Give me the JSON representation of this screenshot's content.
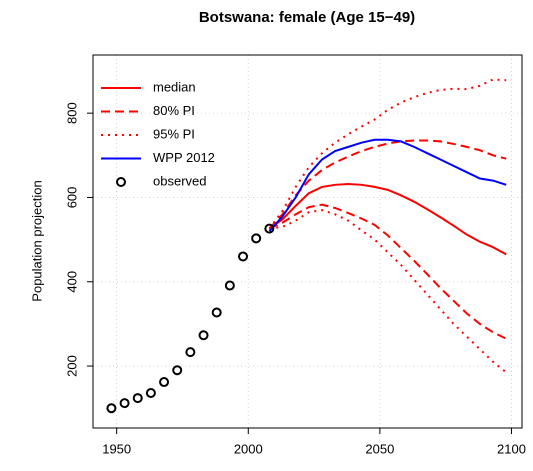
{
  "chart_data": {
    "type": "line",
    "title": "Botswana: female (Age 15−49)",
    "ylabel": "Population projection",
    "xlim": [
      1941,
      2104
    ],
    "ylim": [
      53,
      938
    ],
    "xticks": [
      1950,
      2000,
      2050,
      2100
    ],
    "yticks": [
      200,
      400,
      600,
      800
    ],
    "grid": true,
    "legend": "topleft",
    "series": [
      {
        "name": "median",
        "color": "#ff0000",
        "style": "solid",
        "x": [
          2008,
          2013,
          2018,
          2023,
          2028,
          2033,
          2038,
          2043,
          2048,
          2053,
          2058,
          2063,
          2068,
          2073,
          2078,
          2083,
          2088,
          2093,
          2098
        ],
        "values": [
          526,
          548,
          580,
          610,
          625,
          630,
          632,
          630,
          625,
          618,
          605,
          590,
          572,
          553,
          533,
          512,
          495,
          482,
          465
        ]
      },
      {
        "name": "80% PI",
        "color": "#ff0000",
        "style": "dashed",
        "x": [
          2008,
          2013,
          2018,
          2023,
          2028,
          2033,
          2038,
          2043,
          2048,
          2053,
          2058,
          2063,
          2068,
          2073,
          2078,
          2083,
          2088,
          2093,
          2098
        ],
        "values": [
          526,
          560,
          605,
          640,
          665,
          683,
          697,
          710,
          720,
          728,
          733,
          735,
          735,
          733,
          727,
          720,
          712,
          700,
          692
        ]
      },
      {
        "color": "#ff0000",
        "style": "dashed",
        "x": [
          2008,
          2013,
          2018,
          2023,
          2028,
          2033,
          2038,
          2043,
          2048,
          2053,
          2058,
          2063,
          2068,
          2073,
          2078,
          2083,
          2088,
          2093,
          2098
        ],
        "values": [
          526,
          540,
          560,
          577,
          583,
          575,
          563,
          550,
          535,
          510,
          480,
          450,
          418,
          385,
          355,
          325,
          300,
          280,
          265
        ]
      },
      {
        "name": "95% PI",
        "color": "#ff0000",
        "style": "dotted",
        "x": [
          2008,
          2013,
          2018,
          2023,
          2028,
          2033,
          2038,
          2043,
          2048,
          2053,
          2058,
          2063,
          2068,
          2073,
          2078,
          2083,
          2088,
          2093,
          2098
        ],
        "values": [
          526,
          568,
          625,
          672,
          705,
          730,
          750,
          768,
          785,
          808,
          825,
          838,
          848,
          855,
          858,
          857,
          865,
          880,
          878
        ]
      },
      {
        "color": "#ff0000",
        "style": "dotted",
        "x": [
          2008,
          2013,
          2018,
          2023,
          2028,
          2033,
          2038,
          2043,
          2048,
          2053,
          2058,
          2063,
          2068,
          2073,
          2078,
          2083,
          2088,
          2093,
          2098
        ],
        "values": [
          526,
          530,
          545,
          565,
          570,
          560,
          545,
          522,
          500,
          470,
          440,
          405,
          370,
          335,
          300,
          270,
          240,
          210,
          185
        ]
      },
      {
        "name": "WPP 2012",
        "color": "#0000ff",
        "style": "solid",
        "x": [
          2008,
          2013,
          2018,
          2023,
          2028,
          2033,
          2038,
          2043,
          2048,
          2053,
          2058,
          2063,
          2068,
          2073,
          2078,
          2083,
          2088,
          2093,
          2098
        ],
        "values": [
          520,
          555,
          600,
          655,
          690,
          710,
          720,
          730,
          737,
          737,
          733,
          720,
          705,
          690,
          675,
          660,
          645,
          640,
          630
        ]
      },
      {
        "name": "observed",
        "color": "#000000",
        "style": "points",
        "x": [
          1948,
          1953,
          1958,
          1963,
          1968,
          1973,
          1978,
          1983,
          1988,
          1993,
          1998,
          2003,
          2008
        ],
        "values": [
          100,
          112,
          124,
          136,
          162,
          190,
          233,
          273,
          327,
          391,
          460,
          503,
          526
        ]
      }
    ]
  }
}
